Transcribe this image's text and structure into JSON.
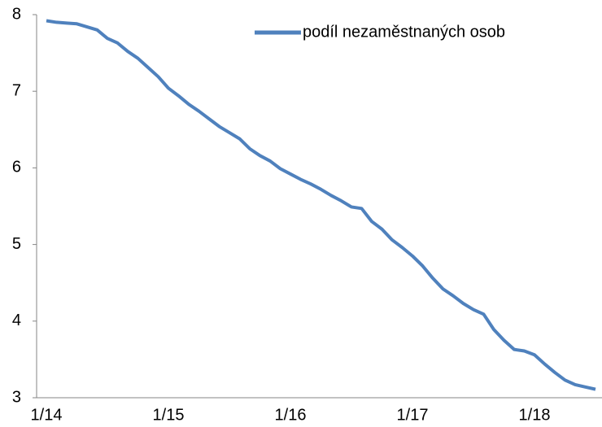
{
  "chart_data": {
    "type": "line",
    "categories": [
      "1/14",
      null,
      null,
      null,
      null,
      null,
      null,
      null,
      null,
      null,
      null,
      null,
      "1/15",
      null,
      null,
      null,
      null,
      null,
      null,
      null,
      null,
      null,
      null,
      null,
      "1/16",
      null,
      null,
      null,
      null,
      null,
      null,
      null,
      null,
      null,
      null,
      null,
      "1/17",
      null,
      null,
      null,
      null,
      null,
      null,
      null,
      null,
      null,
      null,
      null,
      "1/18",
      null,
      null,
      null,
      null,
      null,
      null
    ],
    "series": [
      {
        "name": "podíl nezaměstnaných osob",
        "color": "#4f81bd",
        "values": [
          7.92,
          7.9,
          7.89,
          7.88,
          7.84,
          7.8,
          7.69,
          7.63,
          7.52,
          7.43,
          7.31,
          7.19,
          7.04,
          6.94,
          6.83,
          6.74,
          6.64,
          6.54,
          6.46,
          6.38,
          6.25,
          6.16,
          6.09,
          5.99,
          5.92,
          5.85,
          5.79,
          5.72,
          5.64,
          5.57,
          5.49,
          5.47,
          5.3,
          5.2,
          5.06,
          4.96,
          4.85,
          4.72,
          4.56,
          4.42,
          4.33,
          4.23,
          4.15,
          4.09,
          3.89,
          3.75,
          3.63,
          3.61,
          3.56,
          3.44,
          3.33,
          3.23,
          3.17,
          3.14,
          3.11
        ]
      }
    ],
    "ylim": [
      3,
      8
    ],
    "yticks": [
      3,
      4,
      5,
      6,
      7,
      8
    ],
    "grid": false,
    "legend": "top-right"
  }
}
